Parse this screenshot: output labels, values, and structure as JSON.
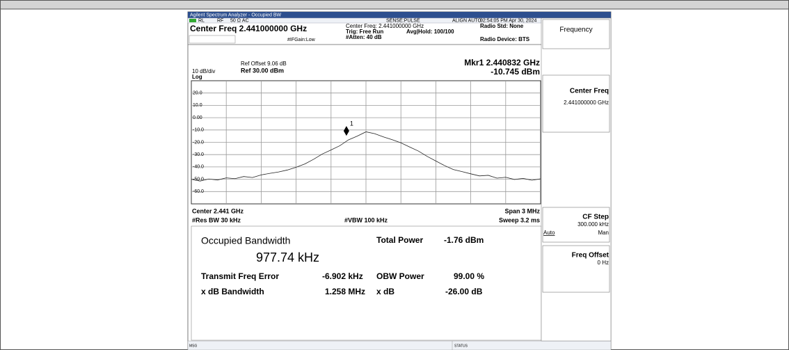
{
  "window": {
    "title": "Agilent Spectrum Analyzer - Occupied BW"
  },
  "status_bar": {
    "rl": "RL",
    "rf": "RF",
    "input": "50 Ω  AC",
    "sense": "SENSE:PULSE",
    "align": "ALIGN AUTO",
    "datetime": "02:54:05 PM Apr 30, 2024",
    "msg": "MSG",
    "status": "STATUS"
  },
  "settings": {
    "center_freq": "Center Freq 2.441000000 GHz",
    "if_gain": "#IFGain:Low",
    "center_freq_info": "Center Freq: 2.441000000 GHz",
    "trig": "Trig: Free Run",
    "avg_hold": "Avg|Hold: 100/100",
    "atten": "#Atten: 40 dB",
    "radio_std": "Radio Std: None",
    "radio_device": "Radio Device: BTS"
  },
  "softkeys": [
    {
      "label": "Frequency"
    },
    {
      "label": "Center Freq",
      "value": "2.441000000 GHz"
    },
    {
      "label": "CF Step",
      "value": "300.000 kHz",
      "options": [
        "Auto",
        "Man"
      ]
    },
    {
      "label": "Freq Offset",
      "value": "0 Hz"
    }
  ],
  "chart_data": {
    "type": "line",
    "ref_offset": "Ref Offset 9.06 dB",
    "scale": "10 dB/div",
    "ref_level": "Ref 30.00 dBm",
    "scale_type": "Log",
    "marker_readout": "Mkr1 2.440832 GHz",
    "marker_value": "-10.745 dBm",
    "marker": {
      "label": "1",
      "x": 2.440832,
      "y": -10.745
    },
    "center": "Center 2.441 GHz",
    "span": "Span 3 MHz",
    "res_bw": "#Res BW 30 kHz",
    "vbw": "#VBW 100 kHz",
    "sweep": "Sweep 3.2 ms",
    "x": [
      2.4395,
      2.439575,
      2.43965,
      2.439725,
      2.4398,
      2.439875,
      2.43995,
      2.440025,
      2.4401,
      2.440175,
      2.44025,
      2.440325,
      2.4404,
      2.440475,
      2.44055,
      2.440625,
      2.4407,
      2.440775,
      2.44085,
      2.440925,
      2.441,
      2.441075,
      2.44115,
      2.441225,
      2.4413,
      2.441375,
      2.44145,
      2.441525,
      2.4416,
      2.441675,
      2.44175,
      2.441825,
      2.4419,
      2.441975,
      2.44205,
      2.442125,
      2.4422,
      2.442275,
      2.44235,
      2.442425,
      2.4425
    ],
    "values": [
      -50,
      -51.5,
      -49.8,
      -50.6,
      -48.9,
      -49.5,
      -47.8,
      -48.6,
      -46.5,
      -45.2,
      -44.1,
      -42.5,
      -40.3,
      -37.6,
      -33.8,
      -29.5,
      -26.2,
      -22.8,
      -18,
      -15,
      -11.5,
      -13,
      -15.6,
      -17.9,
      -20.4,
      -23.8,
      -27.1,
      -31.4,
      -35.2,
      -38.9,
      -42.1,
      -43.8,
      -45.6,
      -47.3,
      -46.8,
      -49.1,
      -48.4,
      -50.2,
      -49.3,
      -50.8,
      -49.7
    ],
    "color": "#222222",
    "xlim": [
      2.4395,
      2.4425
    ],
    "ylim": [
      -70,
      30
    ],
    "xticks": [
      2.4398,
      2.4401,
      2.4404,
      2.4407,
      2.441,
      2.4413,
      2.4416,
      2.4419,
      2.4422
    ],
    "yticks": [
      {
        "value": 20,
        "label": "20.0"
      },
      {
        "value": 10,
        "label": "10.0"
      },
      {
        "value": 0,
        "label": "0.00"
      },
      {
        "value": -10,
        "label": "-10.0"
      },
      {
        "value": -20,
        "label": "-20.0"
      },
      {
        "value": -30,
        "label": "-30.0"
      },
      {
        "value": -40,
        "label": "-40.0"
      },
      {
        "value": -50,
        "label": "-50.0"
      },
      {
        "value": -60,
        "label": "-60.0"
      }
    ],
    "grid": true
  },
  "results": {
    "obw_label": "Occupied Bandwidth",
    "obw_value": "977.74 kHz",
    "total_power_label": "Total Power",
    "total_power_value": "-1.76 dBm",
    "freq_error_label": "Transmit Freq Error",
    "freq_error_value": "-6.902 kHz",
    "obw_power_label": "OBW Power",
    "obw_power_value": "99.00 %",
    "xdb_bw_label": "x dB Bandwidth",
    "xdb_bw_value": "1.258 MHz",
    "xdb_label": "x dB",
    "xdb_value": "-26.00 dB"
  }
}
